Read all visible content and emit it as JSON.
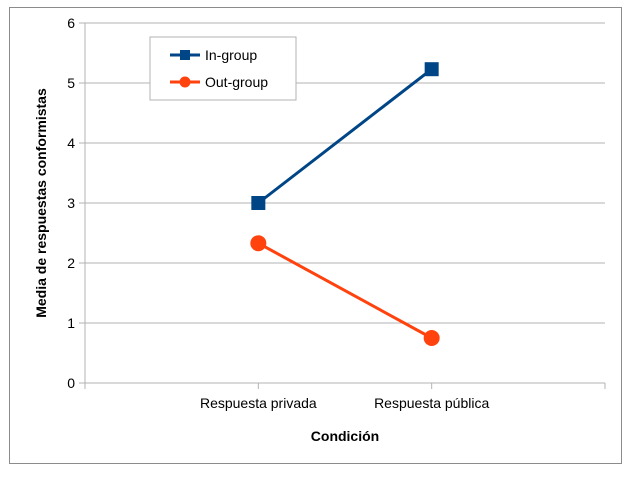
{
  "chart_data": {
    "type": "line",
    "title": "",
    "xlabel": "Condición",
    "ylabel": "Media de respuestas conformistas",
    "categories": [
      "Respuesta privada",
      "Respuesta pública"
    ],
    "ylim": [
      0,
      6
    ],
    "yticks": [
      0,
      1,
      2,
      3,
      4,
      5,
      6
    ],
    "grid": true,
    "legend_position": "top-left",
    "series": [
      {
        "name": "In-group",
        "values": [
          3.0,
          5.23
        ],
        "color": "#004586",
        "marker": "square"
      },
      {
        "name": "Out-group",
        "values": [
          2.33,
          0.75
        ],
        "color": "#ff420e",
        "marker": "circle"
      }
    ]
  }
}
